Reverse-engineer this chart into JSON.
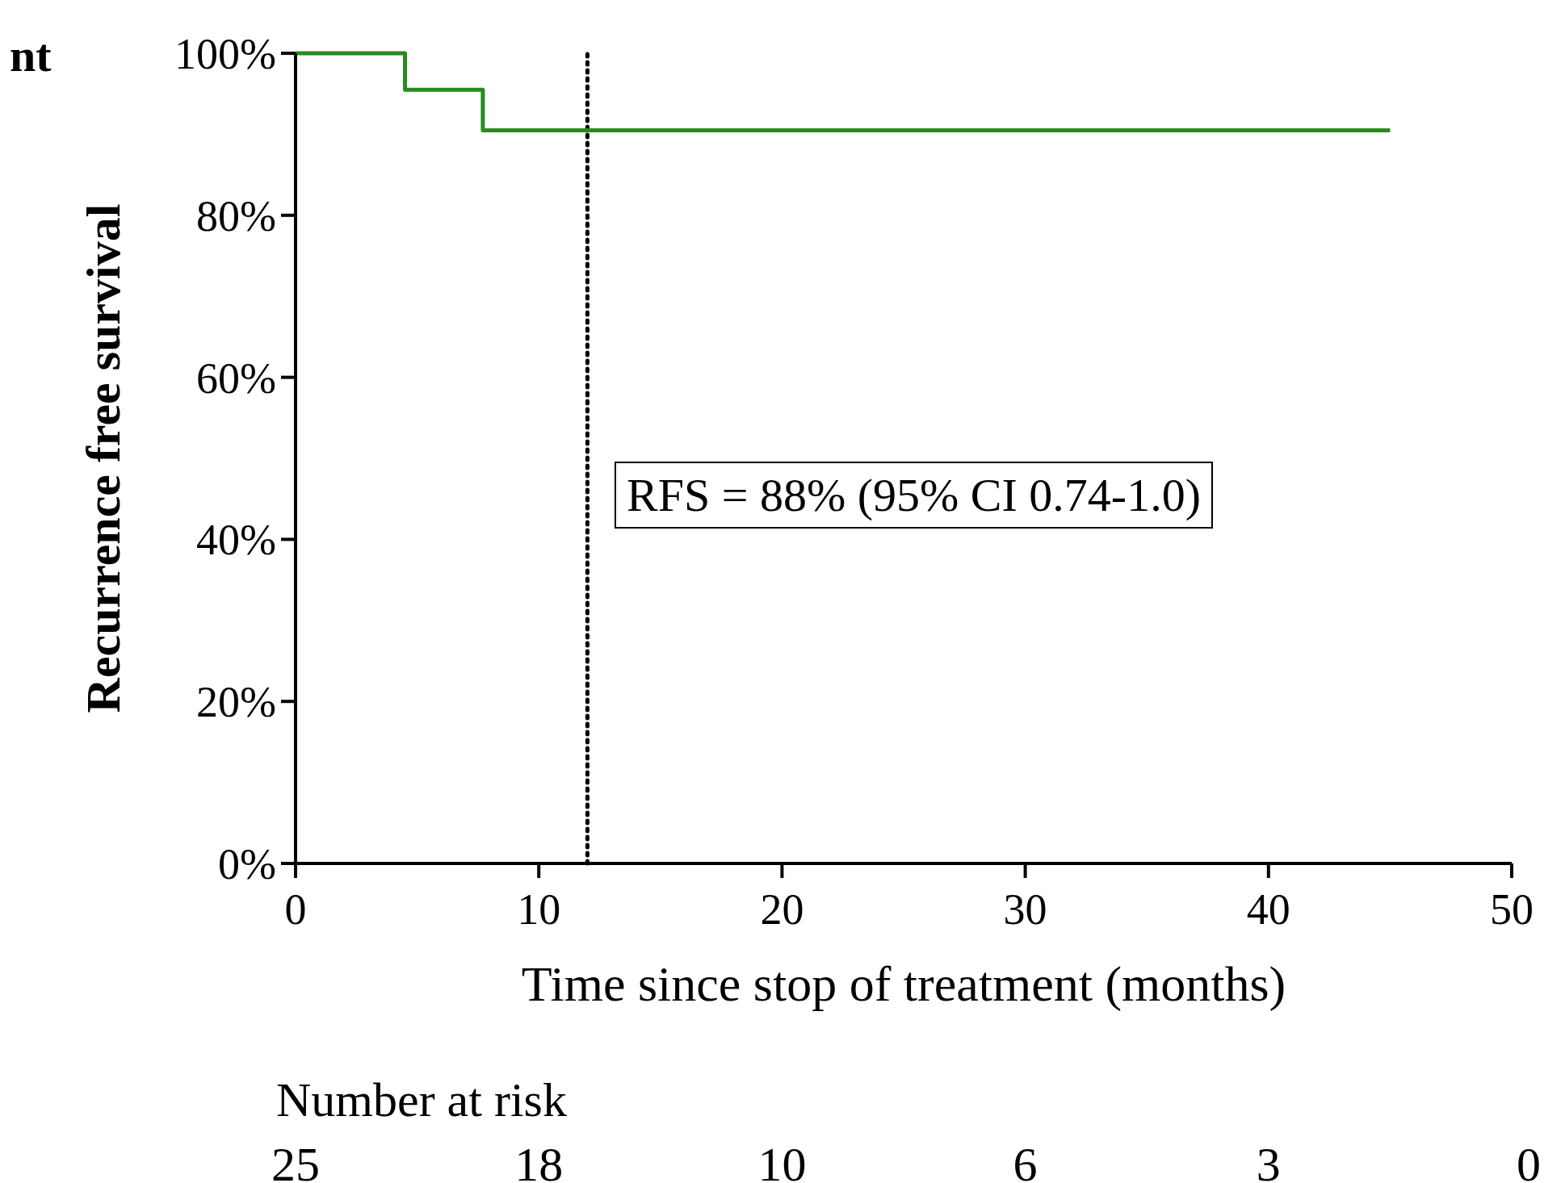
{
  "chart_data": {
    "type": "step",
    "ylabel": "Recurrence free survival",
    "xlabel": "Time since stop of treatment (months)",
    "x": [
      0,
      4.5,
      7.7,
      45
    ],
    "series": [
      {
        "color": "#2a8a1e",
        "values": [
          100,
          95.5,
          90.5,
          90.5
        ]
      }
    ],
    "xlim": [
      0,
      50
    ],
    "xticks": [
      0,
      10,
      20,
      30,
      40,
      50
    ],
    "ylim": [
      0,
      100
    ],
    "yticks": [
      {
        "value": 0,
        "label": "0%"
      },
      {
        "value": 20,
        "label": "20%"
      },
      {
        "value": 40,
        "label": "40%"
      },
      {
        "value": 60,
        "label": "60%"
      },
      {
        "value": 80,
        "label": "80%"
      },
      {
        "value": 100,
        "label": "100%"
      }
    ],
    "ref_lines": [
      {
        "axis": "x",
        "value": 12,
        "color": "#000000",
        "line_style": "dotted"
      }
    ],
    "grid": false,
    "marker": "none",
    "line_style": "solid",
    "annotations": [
      "RFS = 88% (95% CI 0.74-1.0)",
      "Number at risk",
      "nt",
      "25",
      "18",
      "10",
      "6",
      "3",
      "0"
    ]
  }
}
